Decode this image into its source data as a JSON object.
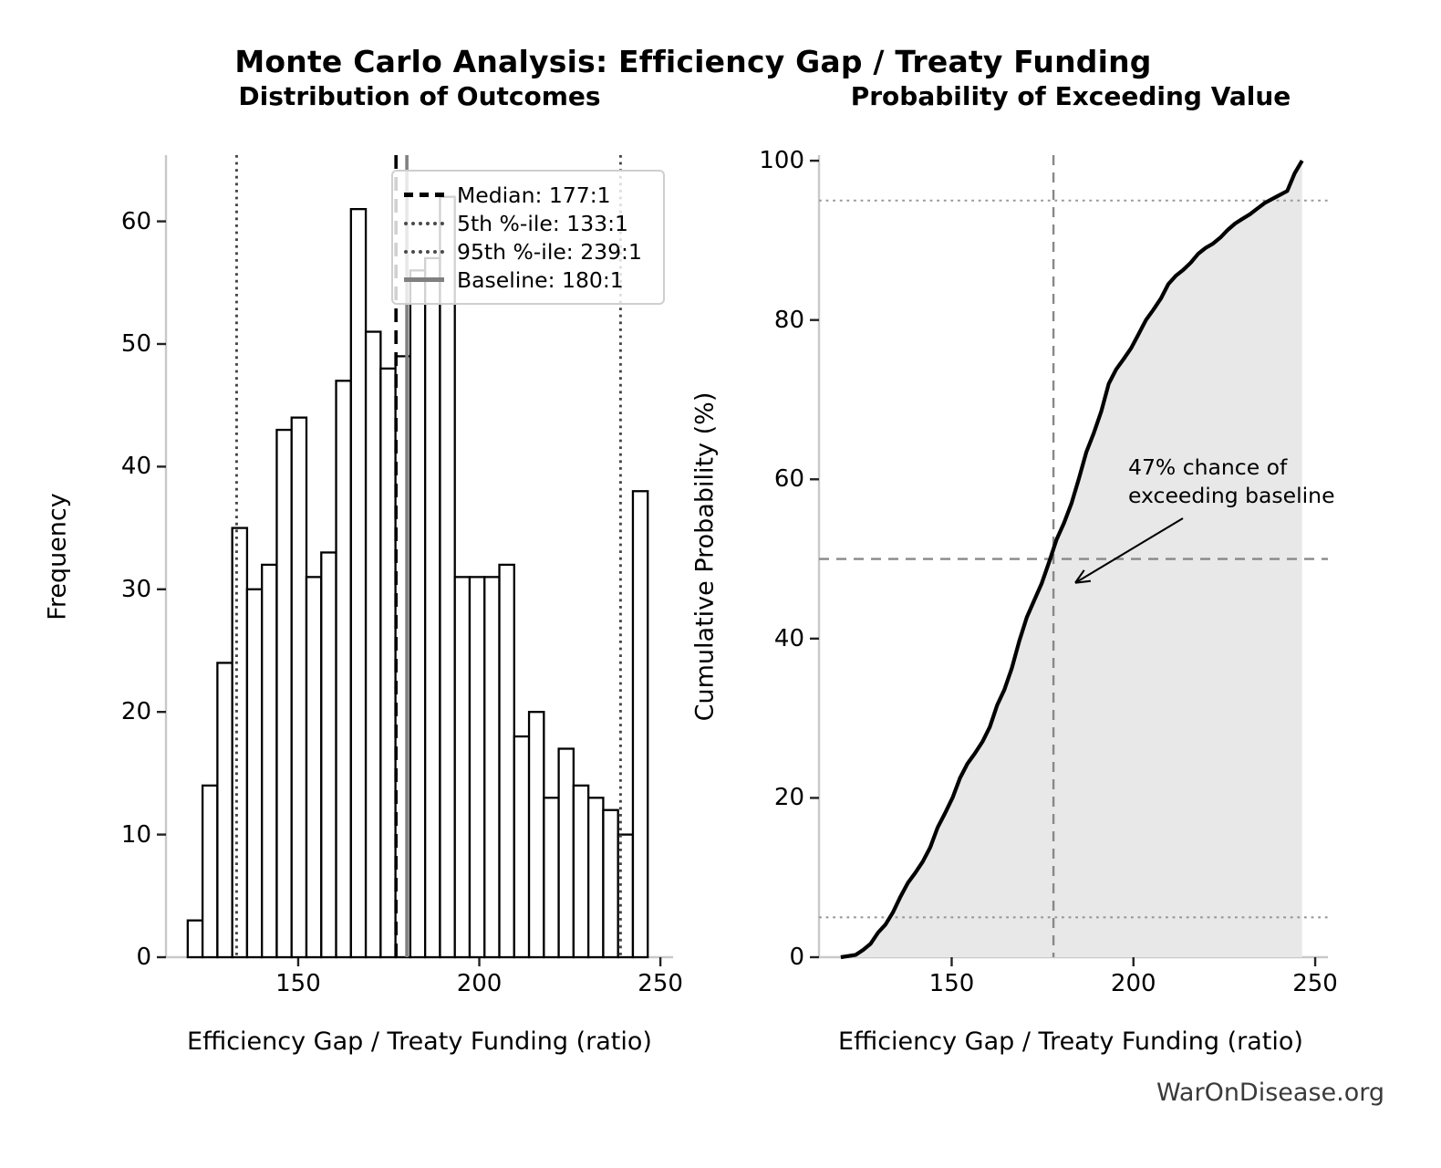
{
  "header": {
    "main_title": "Monte Carlo Analysis: Efficiency Gap / Treaty Funding",
    "watermark": "WarOnDisease.org"
  },
  "charts": {
    "left": {
      "title": "Distribution of Outcomes",
      "xlabel": "Efficiency Gap / Treaty Funding (ratio)",
      "ylabel": "Frequency"
    },
    "right": {
      "title": "Probability of Exceeding Value",
      "xlabel": "Efficiency Gap / Treaty Funding (ratio)",
      "ylabel": "Cumulative Probability (%)",
      "annotation": "47% chance of\nexceeding baseline"
    }
  },
  "chart_data": [
    {
      "id": "outcome-histogram",
      "type": "bar",
      "title": "Distribution of Outcomes",
      "xlabel": "Efficiency Gap / Treaty Funding (ratio)",
      "ylabel": "Frequency",
      "n_samples": 1000,
      "bin_start": 119.5,
      "bin_width": 4.097,
      "frequencies": [
        3,
        14,
        24,
        35,
        30,
        32,
        43,
        44,
        31,
        33,
        47,
        61,
        51,
        48,
        49,
        56,
        57,
        62,
        31,
        31,
        31,
        32,
        18,
        20,
        13,
        17,
        14,
        13,
        12,
        10,
        38
      ],
      "bar_fill": "#ffffff",
      "bar_edge": "#000000",
      "xlim": [
        113.5,
        253.5
      ],
      "ylim": [
        0,
        65.4
      ],
      "xticks": [
        150,
        200,
        250
      ],
      "yticks": [
        0,
        10,
        20,
        30,
        40,
        50,
        60
      ],
      "grid": false,
      "legend_position": "upper right",
      "vlines": [
        {
          "label": "Median: 177:1",
          "value": 177,
          "style": "dashed",
          "color": "#000000"
        },
        {
          "label": "5th %-ile: 133:1",
          "value": 133,
          "style": "dotted",
          "color": "#444444"
        },
        {
          "label": "95th %-ile: 239:1",
          "value": 239,
          "style": "dotted",
          "color": "#444444"
        },
        {
          "label": "Baseline: 180:1",
          "value": 180,
          "style": "solid",
          "color": "#808080"
        }
      ]
    },
    {
      "id": "exceedance-cdf",
      "type": "line",
      "title": "Probability of Exceeding Value",
      "xlabel": "Efficiency Gap / Treaty Funding (ratio)",
      "ylabel": "Cumulative Probability (%)",
      "x": [
        119.5,
        123.6,
        127.7,
        131.8,
        135.9,
        140.0,
        144.1,
        148.2,
        152.3,
        156.4,
        160.5,
        164.5,
        168.6,
        172.7,
        176.8,
        180.9,
        185.0,
        189.1,
        193.2,
        197.3,
        201.4,
        205.5,
        209.6,
        213.7,
        217.8,
        221.9,
        225.9,
        230.0,
        234.1,
        238.2,
        242.3,
        246.4
      ],
      "y": [
        0,
        0.3,
        1.7,
        4.1,
        7.6,
        10.6,
        13.8,
        18.1,
        22.5,
        25.6,
        28.9,
        33.6,
        39.7,
        44.8,
        49.6,
        54.5,
        60.1,
        65.8,
        72.0,
        75.1,
        78.2,
        81.3,
        84.5,
        86.3,
        88.3,
        89.6,
        91.3,
        92.7,
        94.0,
        95.2,
        96.2,
        100.0
      ],
      "line_color": "#000000",
      "fill_color": "#e8e8e8",
      "xlim": [
        113.5,
        253.5
      ],
      "ylim": [
        0,
        100.7
      ],
      "xticks": [
        150,
        200,
        250
      ],
      "yticks": [
        0,
        20,
        40,
        60,
        80,
        100
      ],
      "grid": false,
      "hlines": [
        {
          "value": 5,
          "style": "dotted",
          "color": "#999999"
        },
        {
          "value": 95,
          "style": "dotted",
          "color": "#999999"
        },
        {
          "value": 50,
          "style": "dashed",
          "color": "#888888"
        }
      ],
      "vlines": [
        {
          "value": 178,
          "style": "dashed",
          "color": "#888888"
        }
      ],
      "annotation": {
        "text": "47% chance of\nexceeding baseline",
        "target_x": 184,
        "target_y": 47
      }
    }
  ]
}
